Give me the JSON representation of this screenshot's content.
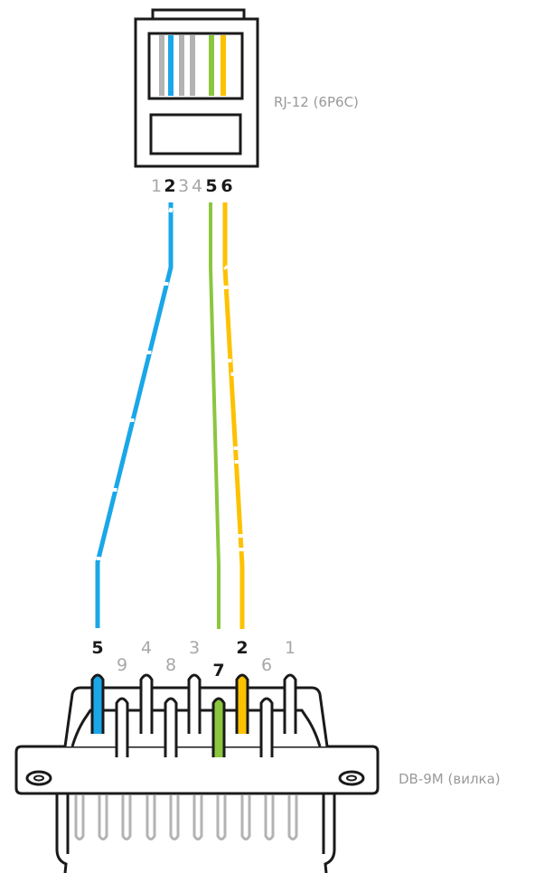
{
  "rj12": {
    "label": "RJ-12 (6P6C)",
    "pins": [
      {
        "num": "1",
        "used": false
      },
      {
        "num": "2",
        "used": true
      },
      {
        "num": "3",
        "used": false
      },
      {
        "num": "4",
        "used": false
      },
      {
        "num": "5",
        "used": true
      },
      {
        "num": "6",
        "used": true
      }
    ]
  },
  "db9": {
    "label": "DB-9M (вилка)",
    "top_row": [
      {
        "num": "5",
        "used": true
      },
      {
        "num": "4",
        "used": false
      },
      {
        "num": "3",
        "used": false
      },
      {
        "num": "2",
        "used": true
      },
      {
        "num": "1",
        "used": false
      }
    ],
    "bottom_row": [
      {
        "num": "9",
        "used": false
      },
      {
        "num": "8",
        "used": false
      },
      {
        "num": "7",
        "used": true
      },
      {
        "num": "6",
        "used": false
      }
    ]
  },
  "wires": [
    {
      "name": "blue",
      "color": "#1aa7e8",
      "rj12_pin": "2",
      "db9_pin": "5"
    },
    {
      "name": "green",
      "color": "#8cc63f",
      "rj12_pin": "5",
      "db9_pin": "7"
    },
    {
      "name": "yellow",
      "color": "#fcc200",
      "rj12_pin": "6",
      "db9_pin": "2"
    }
  ]
}
